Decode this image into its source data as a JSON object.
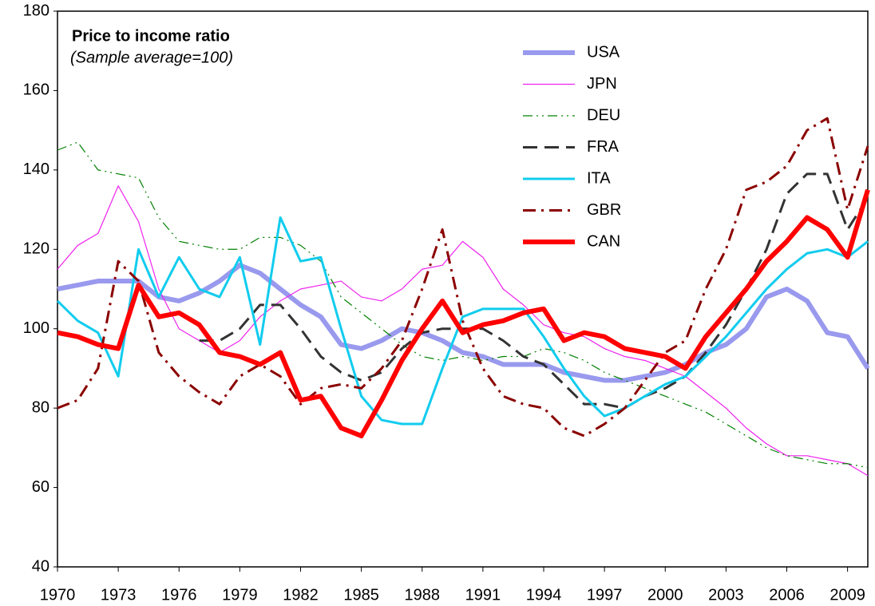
{
  "chart_data": {
    "type": "line",
    "title": "Price to income ratio",
    "subtitle": "(Sample average=100)",
    "x": [
      1970,
      1971,
      1972,
      1973,
      1974,
      1975,
      1976,
      1977,
      1978,
      1979,
      1980,
      1981,
      1982,
      1983,
      1984,
      1985,
      1986,
      1987,
      1988,
      1989,
      1990,
      1991,
      1992,
      1993,
      1994,
      1995,
      1996,
      1997,
      1998,
      1999,
      2000,
      2001,
      2002,
      2003,
      2004,
      2005,
      2006,
      2007,
      2008,
      2009,
      2010
    ],
    "xlim": [
      1970,
      2010
    ],
    "xticks": [
      1970,
      1973,
      1976,
      1979,
      1982,
      1985,
      1988,
      1991,
      1994,
      1997,
      2000,
      2003,
      2006,
      2009
    ],
    "ylim": [
      40,
      180
    ],
    "yticks": [
      40,
      60,
      80,
      100,
      120,
      140,
      160,
      180
    ],
    "grid": false,
    "legend": "top-right",
    "series": [
      {
        "name": "USA",
        "color": "#9999ee",
        "line_width": 6,
        "line_style": "solid",
        "values": [
          110,
          111,
          112,
          112,
          112,
          108,
          107,
          109,
          112,
          116,
          114,
          110,
          106,
          103,
          96,
          95,
          97,
          100,
          99,
          97,
          94,
          93,
          91,
          91,
          91,
          89,
          88,
          87,
          87,
          88,
          89,
          91,
          94,
          96,
          100,
          108,
          110,
          107,
          99,
          98,
          90
        ]
      },
      {
        "name": "JPN",
        "color": "#ee22ee",
        "line_width": 1.2,
        "line_style": "solid",
        "values": [
          115,
          121,
          124,
          136,
          127,
          110,
          100,
          97,
          94,
          97,
          103,
          107,
          110,
          111,
          112,
          108,
          107,
          110,
          115,
          116,
          122,
          118,
          110,
          106,
          101,
          99,
          98,
          95,
          93,
          92,
          90,
          88,
          84,
          80,
          75,
          71,
          68,
          68,
          67,
          66,
          63
        ]
      },
      {
        "name": "DEU",
        "color": "#008000",
        "line_width": 1.2,
        "line_style": "dashdotdot",
        "values": [
          145,
          147,
          140,
          139,
          138,
          128,
          122,
          121,
          120,
          120,
          123,
          123,
          121,
          117,
          108,
          104,
          100,
          96,
          93,
          92,
          93,
          92,
          93,
          93,
          95,
          94,
          92,
          89,
          87,
          85,
          83,
          81,
          79,
          76,
          73,
          70,
          68,
          67,
          66,
          66,
          65
        ]
      },
      {
        "name": "FRA",
        "color": "#333333",
        "line_width": 3,
        "line_style": "dash",
        "values": [
          null,
          null,
          null,
          null,
          null,
          null,
          null,
          97,
          97,
          100,
          106,
          106,
          100,
          93,
          89,
          87,
          89,
          95,
          99,
          100,
          100,
          100,
          97,
          93,
          91,
          86,
          81,
          81,
          80,
          83,
          85,
          88,
          94,
          101,
          110,
          120,
          134,
          139,
          139,
          125,
          133
        ]
      },
      {
        "name": "ITA",
        "color": "#11ccee",
        "line_width": 3,
        "line_style": "solid",
        "values": [
          107,
          102,
          99,
          88,
          120,
          108,
          118,
          110,
          108,
          118,
          96,
          128,
          117,
          118,
          100,
          83,
          77,
          76,
          76,
          90,
          103,
          105,
          105,
          105,
          98,
          90,
          83,
          78,
          80,
          83,
          86,
          88,
          93,
          98,
          104,
          110,
          115,
          119,
          120,
          118,
          122
        ]
      },
      {
        "name": "GBR",
        "color": "#8b0000",
        "line_width": 3,
        "line_style": "dashdot",
        "values": [
          80,
          82,
          90,
          117,
          112,
          94,
          88,
          84,
          81,
          88,
          91,
          88,
          81,
          85,
          86,
          85,
          90,
          97,
          110,
          125,
          102,
          90,
          83,
          81,
          80,
          75,
          73,
          76,
          80,
          87,
          94,
          97,
          110,
          120,
          135,
          137,
          141,
          150,
          153,
          130,
          146
        ]
      },
      {
        "name": "CAN",
        "color": "#ff0000",
        "line_width": 6,
        "line_style": "solid",
        "values": [
          99,
          98,
          96,
          95,
          111,
          103,
          104,
          101,
          94,
          93,
          91,
          94,
          82,
          83,
          75,
          73,
          82,
          92,
          100,
          107,
          99,
          101,
          102,
          104,
          105,
          97,
          99,
          98,
          95,
          94,
          93,
          90,
          98,
          104,
          110,
          117,
          122,
          128,
          125,
          118,
          135
        ]
      }
    ]
  }
}
